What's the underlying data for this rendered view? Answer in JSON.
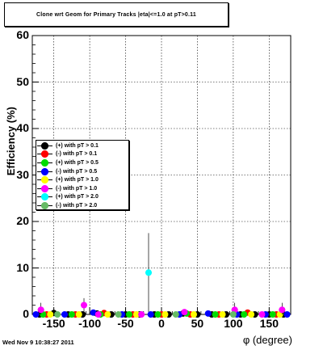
{
  "header": {
    "title": "Clone wrt Geom for Primary Tracks  |eta|<=1.0 at pT>0.11",
    "timestamp": "Wed Nov  9 10:38:27 2011"
  },
  "chart_data": {
    "type": "scatter",
    "xlabel": "φ (degree)",
    "ylabel": "Efficiency (%)",
    "xlim": [
      -180,
      180
    ],
    "ylim": [
      0,
      60
    ],
    "x_ticks": [
      "-150",
      "-100",
      "-50",
      "0",
      "50",
      "100",
      "150"
    ],
    "y_ticks": [
      "0",
      "10",
      "20",
      "30",
      "40",
      "50",
      "60"
    ],
    "grid": true,
    "legend_position": "left",
    "series": [
      {
        "name": "(+) with pT > 0.1",
        "color": "#000000",
        "x": [
          -170,
          -150,
          -130,
          -110,
          -90,
          -70,
          -50,
          -30,
          -10,
          10,
          30,
          50,
          70,
          90,
          110,
          130,
          150,
          170
        ],
        "y": [
          0,
          0.3,
          0,
          0,
          0.2,
          0,
          0,
          0,
          0,
          0,
          0.2,
          0,
          0,
          0,
          0,
          0,
          0,
          0
        ]
      },
      {
        "name": "(-) with pT > 0.1",
        "color": "#ff0000",
        "x": [
          -160,
          -120,
          -80,
          -40,
          0,
          40,
          80,
          120,
          160
        ],
        "y": [
          0,
          0,
          0.3,
          0,
          0,
          0,
          0,
          0.4,
          0
        ]
      },
      {
        "name": "(+) with pT > 0.5",
        "color": "#00dd00",
        "x": [
          -165,
          -125,
          -85,
          -45,
          -5,
          35,
          75,
          115,
          155
        ],
        "y": [
          0,
          0,
          0,
          0,
          0,
          0.2,
          0,
          0,
          0
        ]
      },
      {
        "name": "(-) with pT > 0.5",
        "color": "#0000ff",
        "x": [
          -175,
          -135,
          -95,
          -55,
          -15,
          25,
          65,
          105,
          145,
          175
        ],
        "y": [
          0,
          0,
          0.4,
          0,
          0,
          0,
          0.2,
          0,
          0,
          0
        ]
      },
      {
        "name": "(+) with pT > 1.0",
        "color": "#ffff00",
        "x": [
          -155,
          -115,
          -75,
          -35,
          5,
          45,
          85,
          125,
          165
        ],
        "y": [
          0,
          0,
          0,
          0,
          0,
          0,
          0,
          0,
          0
        ]
      },
      {
        "name": "(-) with pT > 1.0",
        "color": "#ff00ff",
        "x": [
          -168,
          -108,
          -88,
          -28,
          32,
          102,
          140,
          168
        ],
        "y": [
          1,
          2,
          0,
          0,
          0.5,
          1,
          0,
          1
        ]
      },
      {
        "name": "(+) with pT > 2.0",
        "color": "#00ffff",
        "x": [
          -18
        ],
        "y": [
          9
        ]
      },
      {
        "name": "(-) with pT > 2.0",
        "color": "#66bb66",
        "x": [
          -145,
          -60,
          20,
          100
        ],
        "y": [
          0,
          0,
          0,
          0
        ]
      }
    ]
  }
}
